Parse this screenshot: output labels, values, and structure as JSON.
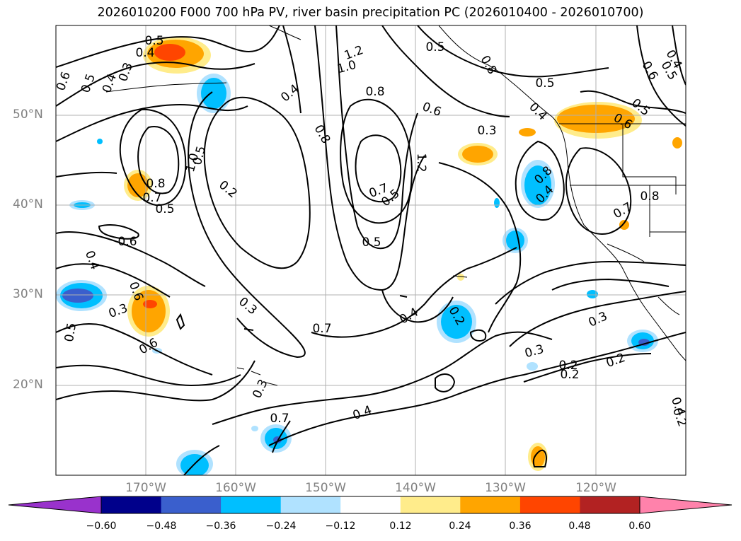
{
  "title": "2026010200 F000 700 hPa PV, river basin precipitation PC (2026010400 - 2026010700)",
  "map": {
    "lat_labels": [
      "50°N",
      "40°N",
      "30°N",
      "20°N"
    ],
    "lon_labels": [
      "170°W",
      "160°W",
      "150°W",
      "140°W",
      "130°W",
      "120°W"
    ],
    "extent": {
      "lon_min": -180,
      "lon_max": -110,
      "lat_min": 10,
      "lat_max": 60
    },
    "gridlines": true,
    "contour_labels": [
      "0.5",
      "0.4",
      "0.6",
      "0.5",
      "0.4",
      "0.3",
      "0.5",
      "1.2",
      "1.0",
      "0.8",
      "0.5",
      "0.4",
      "0.8",
      "0.6",
      "0.5",
      "0.4",
      "0.6",
      "0.5",
      "0.3",
      "0.4",
      "0.5",
      "0.6",
      "0.2",
      "0.8",
      "0.7",
      "0.8",
      "0.7",
      "0.5",
      "1.2",
      "1.0",
      "0.8",
      "0.4",
      "0.8",
      "0.7",
      "0.6",
      "0.4",
      "0.5",
      "0.3",
      "0.7",
      "0.4",
      "0.2",
      "0.6",
      "0.3",
      "0.5",
      "0.6",
      "0.3",
      "0.7",
      "0.4",
      "0.3",
      "0.3",
      "0.2",
      "0.4",
      "0.2",
      "0.5",
      "0.2",
      "0.2"
    ]
  },
  "colorbar": {
    "ticks": [
      "−0.60",
      "−0.48",
      "−0.36",
      "−0.24",
      "−0.12",
      "0.12",
      "0.24",
      "0.36",
      "0.48",
      "0.60"
    ],
    "colors": [
      "#9932cc",
      "#00008b",
      "#3a5fcd",
      "#00bfff",
      "#b0e2ff",
      "#ffffff",
      "#ffec8b",
      "#ffa500",
      "#ff4500",
      "#b22222",
      "#ff82ab"
    ]
  }
}
